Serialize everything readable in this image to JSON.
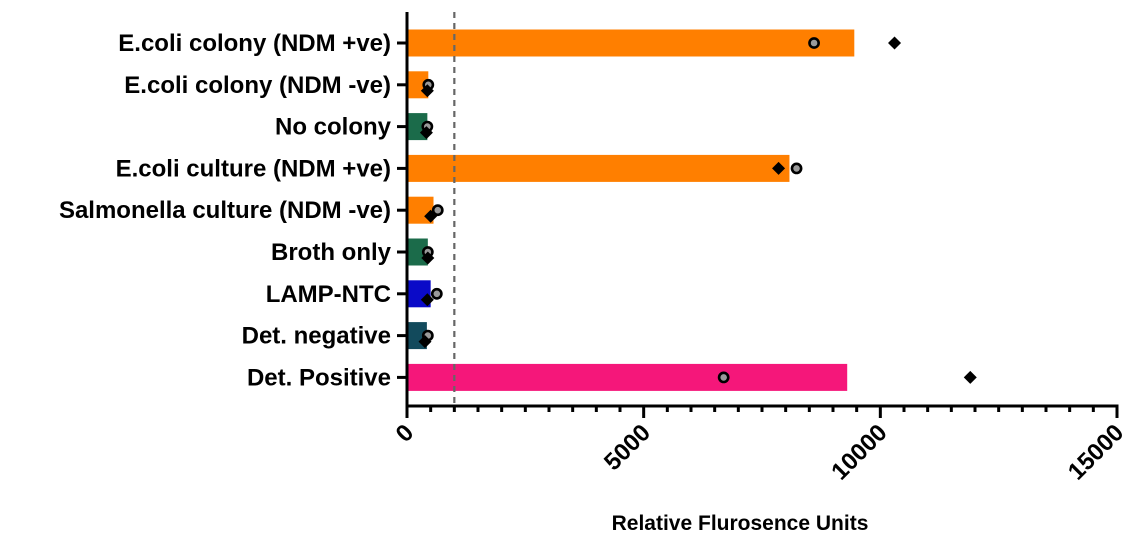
{
  "chart_data": {
    "type": "bar",
    "orientation": "horizontal",
    "title": "",
    "xlabel": "Relative Flurosence Units",
    "ylabel": "",
    "xlim": [
      0,
      15000
    ],
    "xticks": [
      0,
      5000,
      10000,
      15000
    ],
    "threshold": 1000,
    "grid": false,
    "categories": [
      "E.coli colony (NDM +ve)",
      "E.coli colony (NDM -ve)",
      "No colony",
      "E.coli culture (NDM +ve)",
      "Salmonella culture (NDM -ve)",
      "Broth only",
      "LAMP-NTC",
      "Det. negative",
      "Det. Positive"
    ],
    "bar_values": [
      9450,
      450,
      430,
      8080,
      560,
      440,
      500,
      420,
      9300
    ],
    "bar_colors": [
      "#ff7f00",
      "#ff7f00",
      "#1b6b4a",
      "#ff7f00",
      "#ff7f00",
      "#1b6b4a",
      "#0a0ac8",
      "#124a5c",
      "#f5177a"
    ],
    "replicate_circle": [
      8600,
      450,
      430,
      8230,
      650,
      440,
      630,
      440,
      6690
    ],
    "replicate_diamond": [
      10300,
      430,
      410,
      7850,
      500,
      440,
      430,
      380,
      11900
    ]
  }
}
